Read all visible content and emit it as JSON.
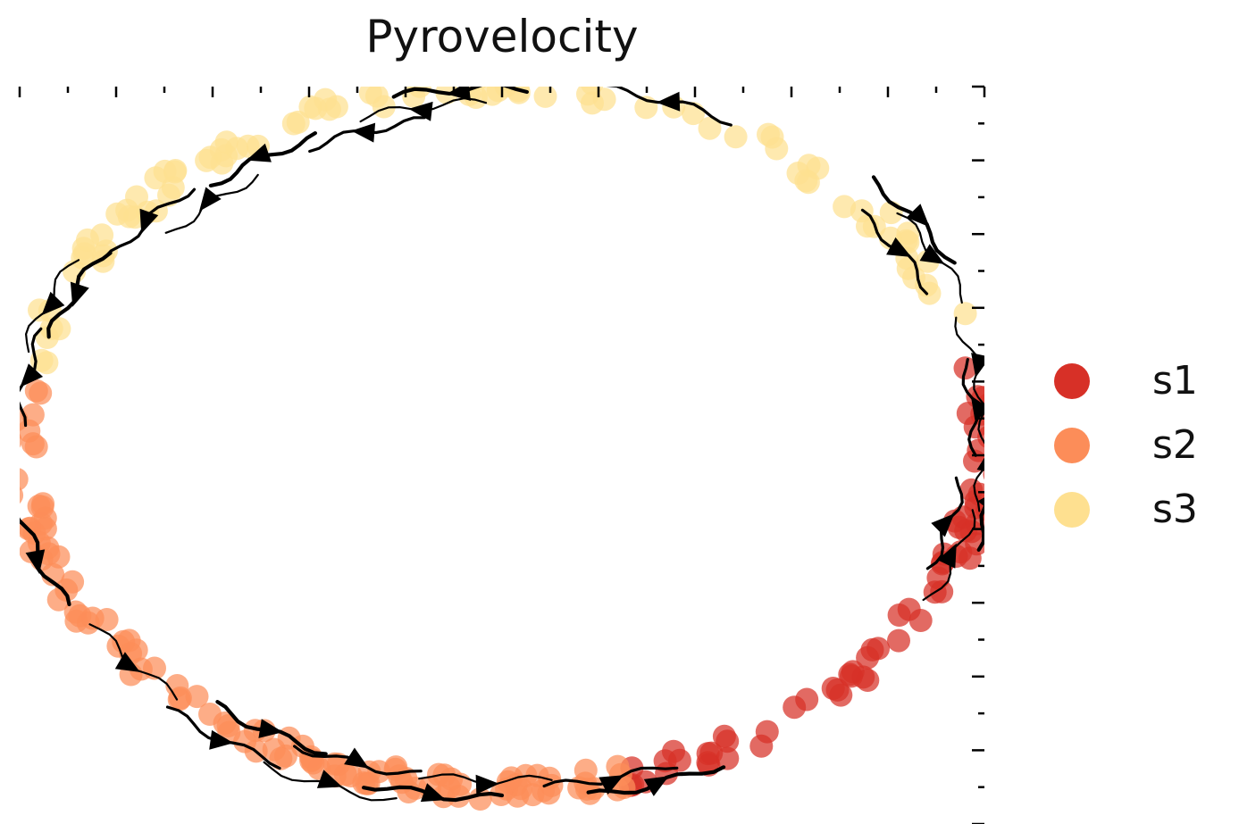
{
  "chart_data": {
    "type": "scatter",
    "subtype": "velocity-streamplot",
    "title": "Pyrovelocity",
    "xlabel": "",
    "ylabel": "",
    "xlim": [
      -1.05,
      1.05
    ],
    "ylim": [
      -1.05,
      1.05
    ],
    "grid": false,
    "legend_position": "right",
    "series": [
      {
        "name": "s1",
        "color": "#d73027",
        "theta_range_deg": [
          -75,
          12
        ],
        "count": 70
      },
      {
        "name": "s2",
        "color": "#fc8d59",
        "theta_range_deg": [
          172,
          285
        ],
        "count": 115
      },
      {
        "name": "s3",
        "color": "#fee090",
        "theta_range_deg": [
          20,
          168
        ],
        "count": 95
      }
    ],
    "streamlines": [
      {
        "theta_deg": 30,
        "direction": "cw",
        "offset": 0.04
      },
      {
        "theta_deg": 33,
        "direction": "cw",
        "offset": -0.02
      },
      {
        "theta_deg": 36,
        "direction": "cw",
        "offset": 0.06
      },
      {
        "theta_deg": 12,
        "direction": "cw",
        "offset": 0.0
      },
      {
        "theta_deg": 70,
        "direction": "ccw",
        "offset": 0.02
      },
      {
        "theta_deg": 95,
        "direction": "ccw",
        "offset": 0.0
      },
      {
        "theta_deg": 100,
        "direction": "ccw",
        "offset": -0.04
      },
      {
        "theta_deg": 108,
        "direction": "ccw",
        "offset": -0.08
      },
      {
        "theta_deg": 122,
        "direction": "ccw",
        "offset": -0.06
      },
      {
        "theta_deg": 132,
        "direction": "ccw",
        "offset": -0.1
      },
      {
        "theta_deg": 140,
        "direction": "ccw",
        "offset": -0.04
      },
      {
        "theta_deg": 155,
        "direction": "ccw",
        "offset": -0.02
      },
      {
        "theta_deg": 158,
        "direction": "ccw",
        "offset": 0.02
      },
      {
        "theta_deg": 170,
        "direction": "ccw",
        "offset": 0.0
      },
      {
        "theta_deg": 200,
        "direction": "ccw",
        "offset": 0.02
      },
      {
        "theta_deg": 220,
        "direction": "ccw",
        "offset": 0.0
      },
      {
        "theta_deg": 236,
        "direction": "ccw",
        "offset": 0.04
      },
      {
        "theta_deg": 240,
        "direction": "ccw",
        "offset": -0.03
      },
      {
        "theta_deg": 250,
        "direction": "ccw",
        "offset": 0.06
      },
      {
        "theta_deg": 252,
        "direction": "ccw",
        "offset": -0.02
      },
      {
        "theta_deg": 262,
        "direction": "ccw",
        "offset": 0.03
      },
      {
        "theta_deg": 268,
        "direction": "ccw",
        "offset": -0.02
      },
      {
        "theta_deg": 283,
        "direction": "ccw",
        "offset": 0.0
      },
      {
        "theta_deg": 288,
        "direction": "ccw",
        "offset": 0.04
      },
      {
        "theta_deg": 340,
        "direction": "ccw",
        "offset": 0.0
      },
      {
        "theta_deg": 345,
        "direction": "ccw",
        "offset": -0.04
      },
      {
        "theta_deg": 350,
        "direction": "ccw",
        "offset": 0.03
      },
      {
        "theta_deg": 356,
        "direction": "ccw",
        "offset": 0.0
      },
      {
        "theta_deg": 5,
        "direction": "ccw",
        "offset": -0.02
      }
    ]
  },
  "legend": {
    "items": [
      {
        "label": "s1",
        "color": "#d73027"
      },
      {
        "label": "s2",
        "color": "#fc8d59"
      },
      {
        "label": "s3",
        "color": "#fee090"
      }
    ]
  }
}
